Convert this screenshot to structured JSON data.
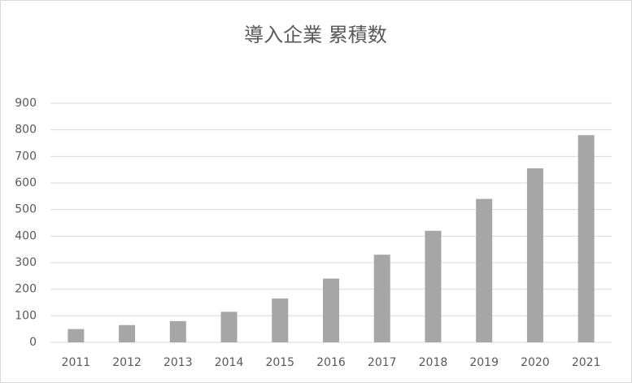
{
  "chart_data": {
    "type": "bar",
    "title": "導入企業 累積数",
    "categories": [
      "2011",
      "2012",
      "2013",
      "2014",
      "2015",
      "2016",
      "2017",
      "2018",
      "2019",
      "2020",
      "2021"
    ],
    "values": [
      50,
      65,
      80,
      115,
      165,
      240,
      330,
      420,
      540,
      655,
      780
    ],
    "color": "#a6a6a6",
    "ylim": [
      0,
      900
    ],
    "yticks": [
      0,
      100,
      200,
      300,
      400,
      500,
      600,
      700,
      800,
      900
    ],
    "grid": true
  }
}
